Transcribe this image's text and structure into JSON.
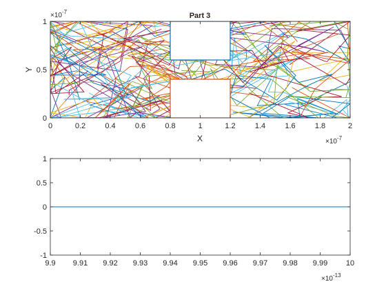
{
  "figure": {
    "background": "#ffffff",
    "colors": [
      "#0072BD",
      "#D95319",
      "#EDB120",
      "#7E2F8E",
      "#77AC30",
      "#4DBEEE",
      "#A2142F"
    ]
  },
  "chart_data": [
    {
      "type": "line",
      "title": "Part 3",
      "xlabel": "X",
      "ylabel": "Y",
      "xlim": [
        0,
        2e-07
      ],
      "ylim": [
        0,
        1e-07
      ],
      "x_exponent_label": "×10",
      "x_exponent": "-7",
      "y_exponent_label": "×10",
      "y_exponent": "-7",
      "xticks": [
        0,
        2e-08,
        4e-08,
        6e-08,
        8e-08,
        1e-07,
        1.2e-07,
        1.4e-07,
        1.6e-07,
        1.8e-07,
        2e-07
      ],
      "xtick_labels": [
        "0",
        "0.2",
        "0.4",
        "0.6",
        "0.8",
        "1",
        "1.2",
        "1.4",
        "1.6",
        "1.8",
        "2"
      ],
      "yticks": [
        0,
        5e-08,
        1e-07
      ],
      "ytick_labels": [
        "0",
        "0.5",
        "1"
      ],
      "grid": false,
      "series_count": 70,
      "points_per_series": 9,
      "seed": 3,
      "rectangles": [
        {
          "x": [
            8e-08,
            1.2e-07
          ],
          "y": [
            6e-08,
            1e-07
          ],
          "color": "#0072BD"
        },
        {
          "x": [
            8e-08,
            1.2e-07
          ],
          "y": [
            0,
            4e-08
          ],
          "color": "#D95319"
        }
      ]
    },
    {
      "type": "line",
      "title": "",
      "xlabel": "",
      "ylabel": "",
      "xlim": [
        9.9e-13,
        1e-12
      ],
      "ylim": [
        -1,
        1
      ],
      "x_exponent_label": "×10",
      "x_exponent": "-13",
      "xticks": [
        9.9e-13,
        9.91e-13,
        9.92e-13,
        9.93e-13,
        9.94e-13,
        9.95e-13,
        9.96e-13,
        9.97e-13,
        9.98e-13,
        9.99e-13,
        1e-12
      ],
      "xtick_labels": [
        "9.9",
        "9.91",
        "9.92",
        "9.93",
        "9.94",
        "9.95",
        "9.96",
        "9.97",
        "9.98",
        "9.99",
        "10"
      ],
      "yticks": [
        -1,
        -0.5,
        0,
        0.5,
        1
      ],
      "ytick_labels": [
        "-1",
        "-0.5",
        "0",
        "0.5",
        "1"
      ],
      "grid": false,
      "series": [
        {
          "x": [
            9.9e-13,
            1e-12
          ],
          "y": [
            0,
            0
          ],
          "color": "#0072BD"
        }
      ]
    }
  ]
}
